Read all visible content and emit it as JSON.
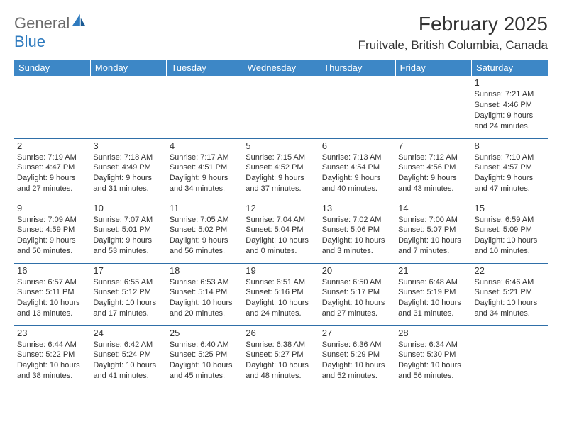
{
  "logo": {
    "word1": "General",
    "word2": "Blue",
    "color1": "#6b6b6b",
    "color2": "#2f7bbf"
  },
  "title": "February 2025",
  "location": "Fruitvale, British Columbia, Canada",
  "header_bg": "#3d87c6",
  "header_text_color": "#ffffff",
  "divider_color": "#2f6fa8",
  "weekdays": [
    "Sunday",
    "Monday",
    "Tuesday",
    "Wednesday",
    "Thursday",
    "Friday",
    "Saturday"
  ],
  "day_label_fontsize": 13,
  "info_fontsize": 11,
  "weeks": [
    [
      null,
      null,
      null,
      null,
      null,
      null,
      {
        "n": "1",
        "sunrise": "7:21 AM",
        "sunset": "4:46 PM",
        "daylight": "9 hours and 24 minutes."
      }
    ],
    [
      {
        "n": "2",
        "sunrise": "7:19 AM",
        "sunset": "4:47 PM",
        "daylight": "9 hours and 27 minutes."
      },
      {
        "n": "3",
        "sunrise": "7:18 AM",
        "sunset": "4:49 PM",
        "daylight": "9 hours and 31 minutes."
      },
      {
        "n": "4",
        "sunrise": "7:17 AM",
        "sunset": "4:51 PM",
        "daylight": "9 hours and 34 minutes."
      },
      {
        "n": "5",
        "sunrise": "7:15 AM",
        "sunset": "4:52 PM",
        "daylight": "9 hours and 37 minutes."
      },
      {
        "n": "6",
        "sunrise": "7:13 AM",
        "sunset": "4:54 PM",
        "daylight": "9 hours and 40 minutes."
      },
      {
        "n": "7",
        "sunrise": "7:12 AM",
        "sunset": "4:56 PM",
        "daylight": "9 hours and 43 minutes."
      },
      {
        "n": "8",
        "sunrise": "7:10 AM",
        "sunset": "4:57 PM",
        "daylight": "9 hours and 47 minutes."
      }
    ],
    [
      {
        "n": "9",
        "sunrise": "7:09 AM",
        "sunset": "4:59 PM",
        "daylight": "9 hours and 50 minutes."
      },
      {
        "n": "10",
        "sunrise": "7:07 AM",
        "sunset": "5:01 PM",
        "daylight": "9 hours and 53 minutes."
      },
      {
        "n": "11",
        "sunrise": "7:05 AM",
        "sunset": "5:02 PM",
        "daylight": "9 hours and 56 minutes."
      },
      {
        "n": "12",
        "sunrise": "7:04 AM",
        "sunset": "5:04 PM",
        "daylight": "10 hours and 0 minutes."
      },
      {
        "n": "13",
        "sunrise": "7:02 AM",
        "sunset": "5:06 PM",
        "daylight": "10 hours and 3 minutes."
      },
      {
        "n": "14",
        "sunrise": "7:00 AM",
        "sunset": "5:07 PM",
        "daylight": "10 hours and 7 minutes."
      },
      {
        "n": "15",
        "sunrise": "6:59 AM",
        "sunset": "5:09 PM",
        "daylight": "10 hours and 10 minutes."
      }
    ],
    [
      {
        "n": "16",
        "sunrise": "6:57 AM",
        "sunset": "5:11 PM",
        "daylight": "10 hours and 13 minutes."
      },
      {
        "n": "17",
        "sunrise": "6:55 AM",
        "sunset": "5:12 PM",
        "daylight": "10 hours and 17 minutes."
      },
      {
        "n": "18",
        "sunrise": "6:53 AM",
        "sunset": "5:14 PM",
        "daylight": "10 hours and 20 minutes."
      },
      {
        "n": "19",
        "sunrise": "6:51 AM",
        "sunset": "5:16 PM",
        "daylight": "10 hours and 24 minutes."
      },
      {
        "n": "20",
        "sunrise": "6:50 AM",
        "sunset": "5:17 PM",
        "daylight": "10 hours and 27 minutes."
      },
      {
        "n": "21",
        "sunrise": "6:48 AM",
        "sunset": "5:19 PM",
        "daylight": "10 hours and 31 minutes."
      },
      {
        "n": "22",
        "sunrise": "6:46 AM",
        "sunset": "5:21 PM",
        "daylight": "10 hours and 34 minutes."
      }
    ],
    [
      {
        "n": "23",
        "sunrise": "6:44 AM",
        "sunset": "5:22 PM",
        "daylight": "10 hours and 38 minutes."
      },
      {
        "n": "24",
        "sunrise": "6:42 AM",
        "sunset": "5:24 PM",
        "daylight": "10 hours and 41 minutes."
      },
      {
        "n": "25",
        "sunrise": "6:40 AM",
        "sunset": "5:25 PM",
        "daylight": "10 hours and 45 minutes."
      },
      {
        "n": "26",
        "sunrise": "6:38 AM",
        "sunset": "5:27 PM",
        "daylight": "10 hours and 48 minutes."
      },
      {
        "n": "27",
        "sunrise": "6:36 AM",
        "sunset": "5:29 PM",
        "daylight": "10 hours and 52 minutes."
      },
      {
        "n": "28",
        "sunrise": "6:34 AM",
        "sunset": "5:30 PM",
        "daylight": "10 hours and 56 minutes."
      },
      null
    ]
  ]
}
